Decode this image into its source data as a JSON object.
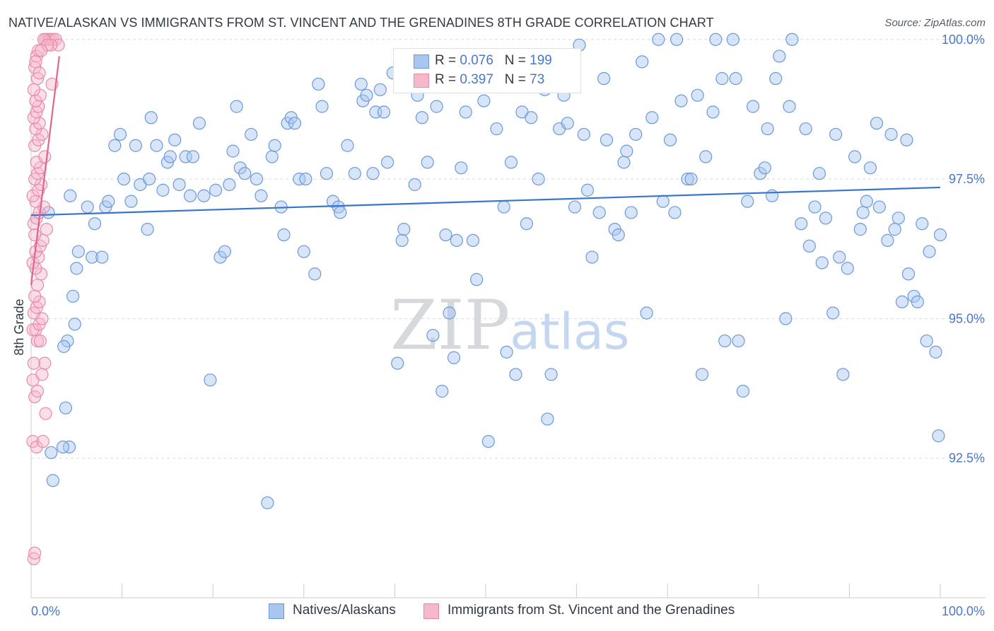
{
  "title": "NATIVE/ALASKAN VS IMMIGRANTS FROM ST. VINCENT AND THE GRENADINES 8TH GRADE CORRELATION CHART",
  "source": "Source: ZipAtlas.com",
  "watermark": {
    "zip": "ZIP",
    "atlas": "atlas"
  },
  "legend": {
    "series1": {
      "r_label": "R = ",
      "r_value": "0.076",
      "n_label": "N = ",
      "n_value": "199"
    },
    "series2": {
      "r_label": "R = ",
      "r_value": "0.397",
      "n_label": "N = ",
      "n_value": "73"
    }
  },
  "bottom_legend": {
    "series1": "Natives/Alaskans",
    "series2": "Immigrants from St. Vincent and the Grenadines"
  },
  "colors": {
    "blue_fill": "#a9c6f0",
    "blue_stroke": "#6a9ad8",
    "blue_line": "#3a74cc",
    "pink_fill": "#f6b8cb",
    "pink_stroke": "#e88aa8",
    "pink_line": "#e26394",
    "tick_text": "#4a78c8",
    "grid": "#d8dbe0"
  },
  "chart_data": {
    "type": "scatter",
    "xlabel": "",
    "ylabel": "8th Grade",
    "xlim": [
      0,
      100
    ],
    "ylim": [
      90.0,
      100.2
    ],
    "x_tick_labels": [
      "0.0%",
      "100.0%"
    ],
    "y_ticks": [
      92.5,
      95.0,
      97.5,
      100.0
    ],
    "y_tick_labels": [
      "92.5%",
      "95.0%",
      "97.5%",
      "100.0%"
    ],
    "grid": true,
    "legend_position": "top-center",
    "series": [
      {
        "name": "Natives/Alaskans",
        "r": 0.076,
        "n": 199,
        "trend": {
          "x": [
            0,
            100
          ],
          "y": [
            96.85,
            97.35
          ]
        },
        "points": [
          [
            4.2,
            92.7
          ],
          [
            4.0,
            94.6
          ],
          [
            3.5,
            92.7
          ],
          [
            2.4,
            92.1
          ],
          [
            2.2,
            92.6
          ],
          [
            3.6,
            94.5
          ],
          [
            3.8,
            93.4
          ],
          [
            1.9,
            96.9
          ],
          [
            4.3,
            97.2
          ],
          [
            4.8,
            94.9
          ],
          [
            5.2,
            96.2
          ],
          [
            4.6,
            95.4
          ],
          [
            5.0,
            95.9
          ],
          [
            6.2,
            97.0
          ],
          [
            7.0,
            96.7
          ],
          [
            6.7,
            96.1
          ],
          [
            7.8,
            96.1
          ],
          [
            8.2,
            97.0
          ],
          [
            8.5,
            97.1
          ],
          [
            9.2,
            98.1
          ],
          [
            9.8,
            98.3
          ],
          [
            10.2,
            97.5
          ],
          [
            11.0,
            97.1
          ],
          [
            11.5,
            98.1
          ],
          [
            12.0,
            97.4
          ],
          [
            12.8,
            96.6
          ],
          [
            13.0,
            97.5
          ],
          [
            13.2,
            98.6
          ],
          [
            13.8,
            98.1
          ],
          [
            14.5,
            97.3
          ],
          [
            15.0,
            97.8
          ],
          [
            15.3,
            97.9
          ],
          [
            15.8,
            98.2
          ],
          [
            16.3,
            97.4
          ],
          [
            17.0,
            97.9
          ],
          [
            17.5,
            97.2
          ],
          [
            17.8,
            97.9
          ],
          [
            18.5,
            98.5
          ],
          [
            19.0,
            97.2
          ],
          [
            19.7,
            93.9
          ],
          [
            20.3,
            97.3
          ],
          [
            20.8,
            96.1
          ],
          [
            21.3,
            96.2
          ],
          [
            21.8,
            97.4
          ],
          [
            22.2,
            98.0
          ],
          [
            22.6,
            98.8
          ],
          [
            23.0,
            97.7
          ],
          [
            23.5,
            97.6
          ],
          [
            24.2,
            98.3
          ],
          [
            24.8,
            97.5
          ],
          [
            25.3,
            97.2
          ],
          [
            26.0,
            91.7
          ],
          [
            26.5,
            97.9
          ],
          [
            26.8,
            98.1
          ],
          [
            27.5,
            97.0
          ],
          [
            27.8,
            96.5
          ],
          [
            28.2,
            98.5
          ],
          [
            28.6,
            98.6
          ],
          [
            29.0,
            98.5
          ],
          [
            29.5,
            97.5
          ],
          [
            30.0,
            96.2
          ],
          [
            30.2,
            97.5
          ],
          [
            31.2,
            95.8
          ],
          [
            31.6,
            99.2
          ],
          [
            32.0,
            98.8
          ],
          [
            32.5,
            97.6
          ],
          [
            33.2,
            97.1
          ],
          [
            33.8,
            97.0
          ],
          [
            34.0,
            96.9
          ],
          [
            34.8,
            98.1
          ],
          [
            35.6,
            97.6
          ],
          [
            36.3,
            99.2
          ],
          [
            36.5,
            98.9
          ],
          [
            36.9,
            99.0
          ],
          [
            37.6,
            97.6
          ],
          [
            37.9,
            98.7
          ],
          [
            38.4,
            99.1
          ],
          [
            38.8,
            98.7
          ],
          [
            39.2,
            97.8
          ],
          [
            39.8,
            99.4
          ],
          [
            40.3,
            94.2
          ],
          [
            40.8,
            96.4
          ],
          [
            41.0,
            96.6
          ],
          [
            42.2,
            97.4
          ],
          [
            42.5,
            99.0
          ],
          [
            43.0,
            98.6
          ],
          [
            43.6,
            97.8
          ],
          [
            44.2,
            94.7
          ],
          [
            44.6,
            98.8
          ],
          [
            45.2,
            93.7
          ],
          [
            45.6,
            96.5
          ],
          [
            46.0,
            95.1
          ],
          [
            46.5,
            94.3
          ],
          [
            46.8,
            96.4
          ],
          [
            47.3,
            97.7
          ],
          [
            47.8,
            98.7
          ],
          [
            48.6,
            96.4
          ],
          [
            49.0,
            95.7
          ],
          [
            49.8,
            98.9
          ],
          [
            50.3,
            92.8
          ],
          [
            51.2,
            98.4
          ],
          [
            52.0,
            97.0
          ],
          [
            52.3,
            94.4
          ],
          [
            52.8,
            97.8
          ],
          [
            53.3,
            94.0
          ],
          [
            54.0,
            98.7
          ],
          [
            54.5,
            96.7
          ],
          [
            55.0,
            98.6
          ],
          [
            55.8,
            97.5
          ],
          [
            56.5,
            99.1
          ],
          [
            56.8,
            93.2
          ],
          [
            57.2,
            94.0
          ],
          [
            58.1,
            98.4
          ],
          [
            58.6,
            99.0
          ],
          [
            59.0,
            98.5
          ],
          [
            59.8,
            97.0
          ],
          [
            60.3,
            99.9
          ],
          [
            60.8,
            98.3
          ],
          [
            61.2,
            97.3
          ],
          [
            61.7,
            96.1
          ],
          [
            62.5,
            96.9
          ],
          [
            63.0,
            99.3
          ],
          [
            63.3,
            98.2
          ],
          [
            64.2,
            96.6
          ],
          [
            64.6,
            96.5
          ],
          [
            65.2,
            97.8
          ],
          [
            65.5,
            98.0
          ],
          [
            66.0,
            96.9
          ],
          [
            66.5,
            98.3
          ],
          [
            67.2,
            99.6
          ],
          [
            67.7,
            95.1
          ],
          [
            68.3,
            98.6
          ],
          [
            69.0,
            100.0
          ],
          [
            69.5,
            97.1
          ],
          [
            70.3,
            98.2
          ],
          [
            70.8,
            96.9
          ],
          [
            71.0,
            100.0
          ],
          [
            71.5,
            98.9
          ],
          [
            72.2,
            97.5
          ],
          [
            72.6,
            97.5
          ],
          [
            73.3,
            99.0
          ],
          [
            73.8,
            94.0
          ],
          [
            74.2,
            97.9
          ],
          [
            75.0,
            98.7
          ],
          [
            75.3,
            100.0
          ],
          [
            76.0,
            99.3
          ],
          [
            76.3,
            94.6
          ],
          [
            77.2,
            100.0
          ],
          [
            77.5,
            99.3
          ],
          [
            77.8,
            94.6
          ],
          [
            78.3,
            93.7
          ],
          [
            78.8,
            97.1
          ],
          [
            79.4,
            98.8
          ],
          [
            80.2,
            97.6
          ],
          [
            80.7,
            97.7
          ],
          [
            81.0,
            98.4
          ],
          [
            81.5,
            97.2
          ],
          [
            81.9,
            99.3
          ],
          [
            82.3,
            99.7
          ],
          [
            83.0,
            95.0
          ],
          [
            83.4,
            98.8
          ],
          [
            83.7,
            100.0
          ],
          [
            84.7,
            96.7
          ],
          [
            85.2,
            98.4
          ],
          [
            85.6,
            96.3
          ],
          [
            86.2,
            97.0
          ],
          [
            86.7,
            97.6
          ],
          [
            87.0,
            96.0
          ],
          [
            87.4,
            96.8
          ],
          [
            88.2,
            95.1
          ],
          [
            88.5,
            98.3
          ],
          [
            88.9,
            96.1
          ],
          [
            89.3,
            94.0
          ],
          [
            89.8,
            95.9
          ],
          [
            90.6,
            97.9
          ],
          [
            91.2,
            96.6
          ],
          [
            91.5,
            96.9
          ],
          [
            91.9,
            97.1
          ],
          [
            92.3,
            97.7
          ],
          [
            93.0,
            98.5
          ],
          [
            93.3,
            97.0
          ],
          [
            94.2,
            96.4
          ],
          [
            94.6,
            98.3
          ],
          [
            95.0,
            96.6
          ],
          [
            95.4,
            96.8
          ],
          [
            95.8,
            95.3
          ],
          [
            96.3,
            98.2
          ],
          [
            96.5,
            95.8
          ],
          [
            97.1,
            95.4
          ],
          [
            97.5,
            95.3
          ],
          [
            98.0,
            96.7
          ],
          [
            98.5,
            94.6
          ],
          [
            98.8,
            96.2
          ],
          [
            99.5,
            94.4
          ],
          [
            99.8,
            92.9
          ],
          [
            100.0,
            96.5
          ]
        ]
      },
      {
        "name": "Immigrants from St. Vincent and the Grenadines",
        "r": 0.397,
        "n": 73,
        "trend": {
          "x": [
            0,
            3.1
          ],
          "y": [
            95.6,
            99.7
          ]
        },
        "points": [
          [
            0.3,
            90.7
          ],
          [
            0.4,
            90.8
          ],
          [
            0.2,
            92.8
          ],
          [
            0.6,
            92.7
          ],
          [
            1.3,
            92.8
          ],
          [
            1.6,
            93.3
          ],
          [
            0.4,
            93.6
          ],
          [
            0.7,
            93.7
          ],
          [
            0.2,
            93.9
          ],
          [
            1.2,
            94.0
          ],
          [
            1.5,
            94.2
          ],
          [
            0.3,
            94.2
          ],
          [
            0.7,
            94.6
          ],
          [
            1.0,
            94.6
          ],
          [
            0.5,
            94.8
          ],
          [
            0.2,
            94.8
          ],
          [
            0.9,
            94.9
          ],
          [
            1.2,
            95.0
          ],
          [
            0.3,
            95.1
          ],
          [
            0.6,
            95.2
          ],
          [
            0.9,
            95.3
          ],
          [
            0.4,
            95.4
          ],
          [
            0.7,
            95.6
          ],
          [
            1.1,
            95.8
          ],
          [
            0.5,
            95.9
          ],
          [
            0.2,
            96.0
          ],
          [
            0.8,
            96.1
          ],
          [
            0.5,
            96.2
          ],
          [
            1.0,
            96.3
          ],
          [
            1.3,
            96.4
          ],
          [
            0.4,
            96.5
          ],
          [
            1.7,
            96.6
          ],
          [
            0.3,
            96.7
          ],
          [
            0.6,
            96.8
          ],
          [
            0.9,
            96.9
          ],
          [
            1.4,
            97.0
          ],
          [
            0.5,
            97.1
          ],
          [
            0.2,
            97.2
          ],
          [
            0.8,
            97.3
          ],
          [
            1.1,
            97.4
          ],
          [
            0.4,
            97.5
          ],
          [
            0.7,
            97.6
          ],
          [
            1.0,
            97.7
          ],
          [
            0.6,
            97.8
          ],
          [
            1.5,
            97.9
          ],
          [
            0.4,
            98.1
          ],
          [
            0.8,
            98.2
          ],
          [
            1.2,
            98.3
          ],
          [
            0.5,
            98.4
          ],
          [
            0.9,
            98.5
          ],
          [
            0.3,
            98.6
          ],
          [
            0.6,
            98.7
          ],
          [
            0.8,
            98.8
          ],
          [
            0.5,
            98.9
          ],
          [
            1.0,
            99.0
          ],
          [
            2.3,
            99.2
          ],
          [
            0.7,
            99.3
          ],
          [
            0.4,
            99.5
          ],
          [
            0.6,
            99.7
          ],
          [
            0.8,
            99.8
          ],
          [
            1.6,
            100.0
          ],
          [
            1.9,
            100.0
          ],
          [
            2.1,
            100.0
          ],
          [
            2.4,
            100.0
          ],
          [
            2.7,
            100.0
          ],
          [
            3.0,
            99.9
          ],
          [
            1.4,
            100.0
          ],
          [
            2.2,
            99.9
          ],
          [
            1.8,
            99.9
          ],
          [
            1.1,
            99.8
          ],
          [
            0.5,
            99.6
          ],
          [
            0.9,
            99.4
          ],
          [
            0.3,
            99.1
          ]
        ]
      }
    ]
  }
}
